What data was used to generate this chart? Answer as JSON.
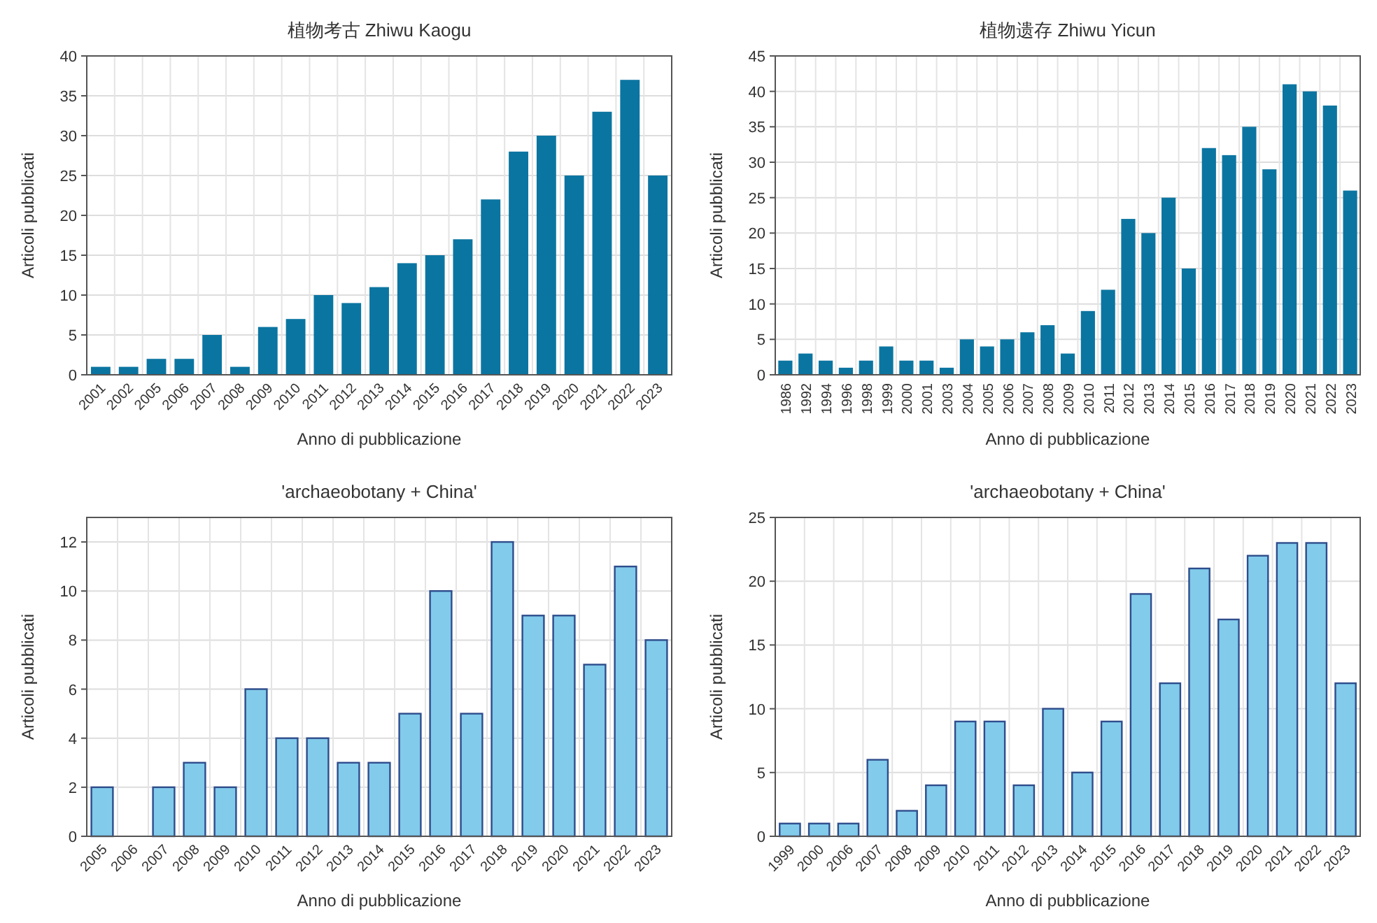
{
  "chart_data": [
    {
      "type": "bar",
      "title": "植物考古 Zhiwu Kaogu",
      "xlabel": "Anno di pubblicazione",
      "ylabel": "Articoli pubblicati",
      "color": "#0b75a1",
      "ylim": [
        0,
        40
      ],
      "yticks": [
        0,
        5,
        10,
        15,
        20,
        25,
        30,
        35,
        40
      ],
      "grid": true,
      "categories": [
        "2001",
        "2002",
        "2005",
        "2006",
        "2007",
        "2008",
        "2009",
        "2010",
        "2011",
        "2012",
        "2013",
        "2014",
        "2015",
        "2016",
        "2017",
        "2018",
        "2019",
        "2020",
        "2021",
        "2022",
        "2023"
      ],
      "values": [
        1,
        1,
        2,
        2,
        5,
        1,
        6,
        7,
        10,
        9,
        11,
        14,
        15,
        17,
        22,
        28,
        30,
        25,
        33,
        37,
        25
      ]
    },
    {
      "type": "bar",
      "title": "植物遗存 Zhiwu Yicun",
      "xlabel": "Anno di pubblicazione",
      "ylabel": "Articoli pubblicati",
      "color": "#0b75a1",
      "ylim": [
        0,
        45
      ],
      "yticks": [
        0,
        5,
        10,
        15,
        20,
        25,
        30,
        35,
        40,
        45
      ],
      "grid": true,
      "categories": [
        "1986",
        "1992",
        "1994",
        "1996",
        "1998",
        "1999",
        "2000",
        "2001",
        "2003",
        "2004",
        "2005",
        "2006",
        "2007",
        "2008",
        "2009",
        "2010",
        "2011",
        "2012",
        "2013",
        "2014",
        "2015",
        "2016",
        "2017",
        "2018",
        "2019",
        "2020",
        "2021",
        "2022",
        "2023"
      ],
      "values": [
        2,
        3,
        2,
        1,
        2,
        4,
        2,
        2,
        1,
        5,
        4,
        5,
        6,
        7,
        3,
        9,
        12,
        22,
        20,
        25,
        15,
        32,
        31,
        35,
        29,
        41,
        40,
        38,
        26
      ]
    },
    {
      "type": "bar",
      "title": "'archaeobotany + China'",
      "xlabel": "Anno di pubblicazione",
      "ylabel": "Articoli pubblicati",
      "color": "#82cbeb",
      "ylim": [
        0,
        13
      ],
      "yticks": [
        0,
        2,
        4,
        6,
        8,
        10,
        12
      ],
      "grid": true,
      "categories": [
        "2005",
        "2006",
        "2007",
        "2008",
        "2009",
        "2010",
        "2011",
        "2012",
        "2013",
        "2014",
        "2015",
        "2016",
        "2017",
        "2018",
        "2019",
        "2020",
        "2021",
        "2022",
        "2023"
      ],
      "values": [
        2,
        0,
        2,
        3,
        2,
        6,
        4,
        4,
        3,
        3,
        5,
        10,
        5,
        12,
        9,
        9,
        7,
        11,
        8
      ]
    },
    {
      "type": "bar",
      "title": "'archaeobotany + China'",
      "xlabel": "Anno di pubblicazione",
      "ylabel": "Articoli pubblicati",
      "color": "#82cbeb",
      "ylim": [
        0,
        25
      ],
      "yticks": [
        0,
        5,
        10,
        15,
        20,
        25
      ],
      "grid": true,
      "categories": [
        "1999",
        "2000",
        "2006",
        "2007",
        "2008",
        "2009",
        "2010",
        "2011",
        "2012",
        "2013",
        "2014",
        "2015",
        "2016",
        "2017",
        "2018",
        "2019",
        "2020",
        "2021",
        "2022",
        "2023"
      ],
      "values": [
        1,
        1,
        1,
        6,
        2,
        4,
        9,
        9,
        4,
        10,
        5,
        9,
        19,
        12,
        21,
        17,
        22,
        23,
        23,
        12
      ]
    }
  ]
}
